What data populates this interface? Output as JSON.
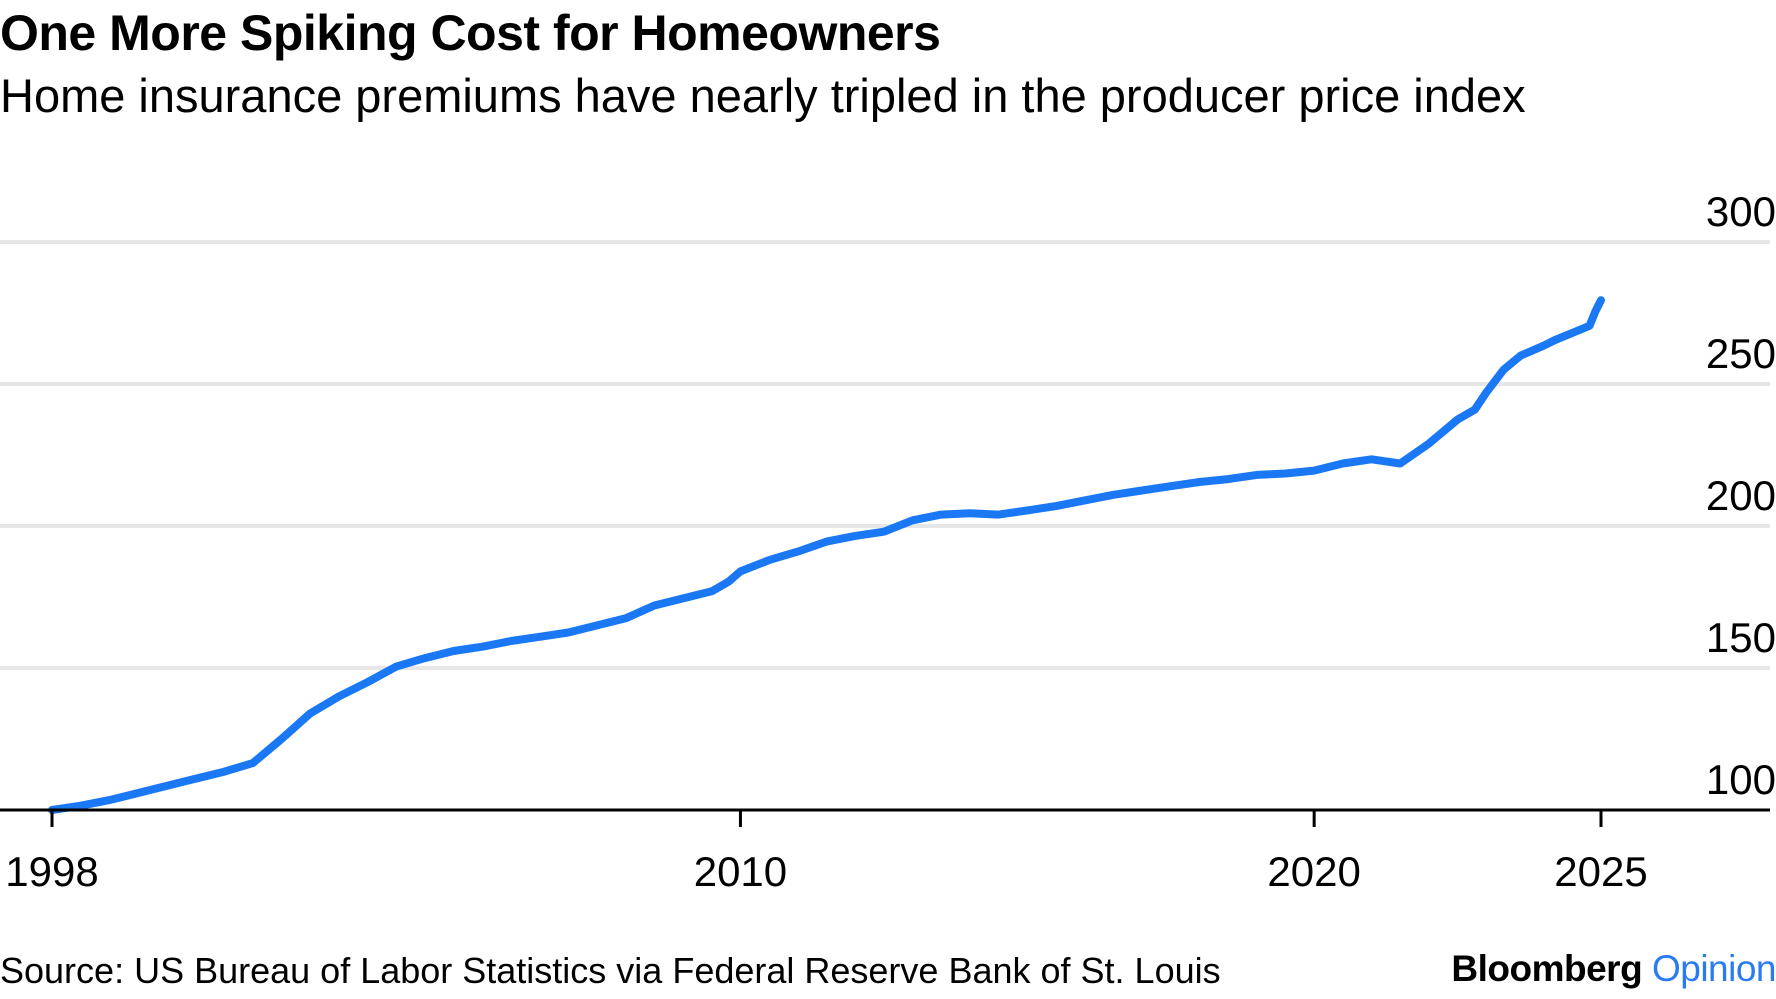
{
  "header": {
    "title": "One More Spiking Cost for Homeowners",
    "subtitle": "Home insurance premiums have nearly tripled in the producer price index"
  },
  "footer": {
    "source": "Source: US Bureau of Labor Statistics via Federal Reserve Bank of St. Louis",
    "brand_main": "Bloomberg",
    "brand_accent": "Opinion"
  },
  "colors": {
    "line": "#1a78f5",
    "grid": "#e6e6e6",
    "axis": "#000000",
    "brand_accent": "#2a7af3"
  },
  "chart_data": {
    "type": "line",
    "title": "One More Spiking Cost for Homeowners",
    "subtitle": "Home insurance premiums have nearly tripled in the producer price index",
    "xlabel": "",
    "ylabel": "",
    "xlim": [
      1998,
      2028
    ],
    "ylim": [
      100,
      300
    ],
    "x_ticks": [
      1998,
      2010,
      2020,
      2025
    ],
    "x_tick_labels": [
      "1998",
      "2010",
      "2020",
      "2025"
    ],
    "y_ticks": [
      100,
      150,
      200,
      250,
      300
    ],
    "y_tick_labels": [
      "100",
      "150",
      "200",
      "250",
      "300"
    ],
    "y_axis_side": "right",
    "grid": true,
    "legend": false,
    "series": [
      {
        "name": "Home insurance PPI",
        "x": [
          1998.0,
          1998.5,
          1999.0,
          1999.5,
          2000.0,
          2000.5,
          2001.0,
          2001.5,
          2002.0,
          2002.5,
          2003.0,
          2003.5,
          2004.0,
          2004.5,
          2005.0,
          2005.5,
          2006.0,
          2006.5,
          2007.0,
          2007.5,
          2008.0,
          2008.5,
          2009.0,
          2009.5,
          2009.8,
          2010.0,
          2010.5,
          2011.0,
          2011.5,
          2012.0,
          2012.5,
          2013.0,
          2013.5,
          2014.0,
          2014.5,
          2015.0,
          2015.5,
          2016.0,
          2016.5,
          2017.0,
          2017.5,
          2018.0,
          2018.5,
          2019.0,
          2019.5,
          2020.0,
          2020.5,
          2021.0,
          2021.5,
          2022.0,
          2022.5,
          2022.8,
          2023.0,
          2023.3,
          2023.6,
          2024.0,
          2024.2,
          2024.5,
          2024.8,
          2024.9,
          2025.0
        ],
        "values": [
          100.0,
          101.5,
          103.5,
          106.0,
          108.5,
          111.0,
          113.5,
          116.5,
          125.0,
          134.0,
          140.0,
          145.0,
          150.5,
          153.5,
          156.0,
          157.5,
          159.5,
          161.0,
          162.5,
          165.0,
          167.5,
          172.0,
          174.5,
          177.0,
          180.5,
          184.0,
          188.0,
          191.0,
          194.5,
          196.5,
          198.0,
          202.0,
          204.0,
          204.5,
          204.0,
          205.5,
          207.0,
          209.0,
          211.0,
          212.5,
          214.0,
          215.5,
          216.5,
          218.0,
          218.5,
          219.5,
          222.0,
          223.5,
          222.0,
          229.0,
          237.5,
          241.0,
          247.0,
          255.0,
          260.0,
          263.5,
          265.5,
          268.0,
          270.5,
          275.5,
          279.5
        ]
      }
    ]
  }
}
